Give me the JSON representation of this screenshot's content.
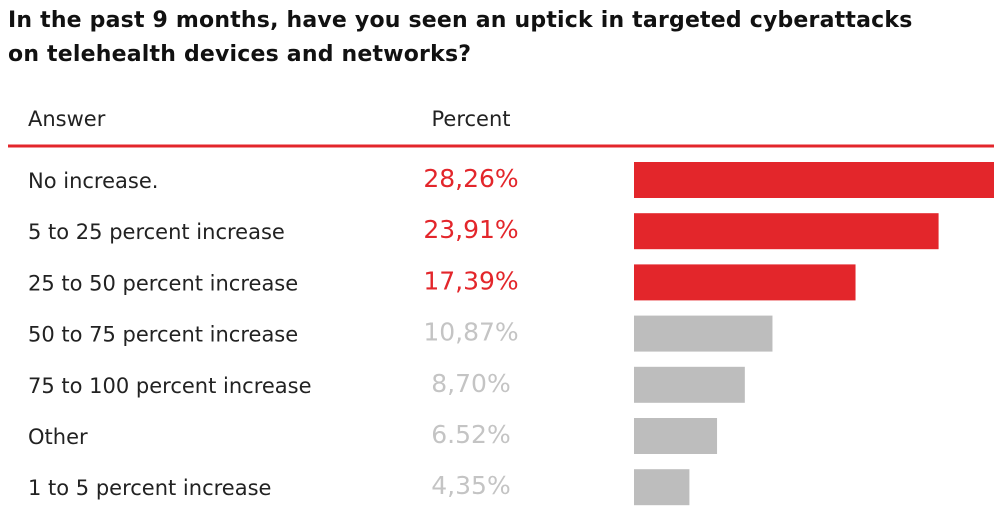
{
  "chart_data": {
    "type": "bar",
    "title": "In the past 9 months, have you seen an uptick in targeted cyberattacks\non telehealth devices and networks?",
    "column_headers": [
      "Answer",
      "Percent"
    ],
    "categories": [
      "No increase.",
      "5 to 25 percent increase",
      "25 to 50 percent increase",
      "50 to 75 percent increase",
      "75 to 100 percent increase",
      "Other",
      "1 to 5 percent increase"
    ],
    "values": [
      28.26,
      23.91,
      17.39,
      10.87,
      8.7,
      6.52,
      4.35
    ],
    "value_labels": [
      "28,26%",
      "23,91%",
      "17,39%",
      "10,87%",
      "8,70%",
      "6.52%",
      "4,35%"
    ],
    "colors": [
      "#e3262b",
      "#e3262b",
      "#e3262b",
      "#bdbdbd",
      "#bdbdbd",
      "#bdbdbd",
      "#bdbdbd"
    ],
    "label_colors": [
      "#e3262b",
      "#e3262b",
      "#e3262b",
      "#c4c4c4",
      "#c4c4c4",
      "#c4c4c4",
      "#c4c4c4"
    ]
  }
}
